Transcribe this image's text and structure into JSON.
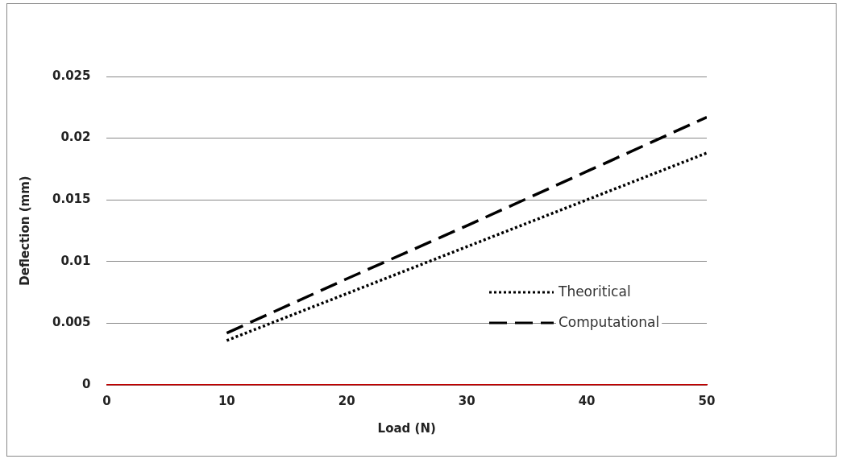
{
  "chart_data": {
    "type": "line",
    "xlabel": "Load (N)",
    "ylabel": "Deflection (mm)",
    "x": [
      10,
      20,
      30,
      40,
      50
    ],
    "series": [
      {
        "name": "Theoritical",
        "color": "#000000",
        "line_style": "dotted",
        "values": [
          0.0036,
          0.0074,
          0.0112,
          0.015,
          0.0188
        ]
      },
      {
        "name": "Computational",
        "color": "#000000",
        "line_style": "dashed",
        "values": [
          0.0042,
          0.0086,
          0.0129,
          0.0173,
          0.0217
        ]
      }
    ],
    "xlim": [
      0,
      50
    ],
    "xticks": [
      0,
      10,
      20,
      30,
      40,
      50
    ],
    "ylim": [
      0,
      0.025
    ],
    "yticks": [
      0,
      0.005,
      0.01,
      0.015,
      0.02,
      0.025
    ],
    "grid": "y",
    "legend": "right",
    "marker": "none"
  }
}
